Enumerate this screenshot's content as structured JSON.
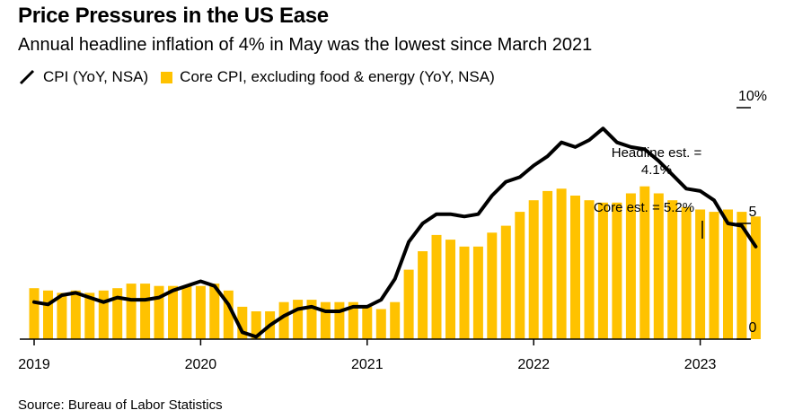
{
  "header": {
    "title": "Price Pressures in the US Ease",
    "subtitle": "Annual headline inflation of 4% in May was the lowest since March 2021"
  },
  "legend": {
    "cpi_label": "CPI (YoY, NSA)",
    "core_label": "Core CPI, excluding food & energy (YoY, NSA)"
  },
  "footer": {
    "source": "Source: Bureau of Labor Statistics"
  },
  "colors": {
    "cpi_line": "#000000",
    "core_bar": "#FFC200",
    "axis": "#000000"
  },
  "chart_data": {
    "type": "bar+line",
    "x_start": "2019-01",
    "months": [
      "2019-01",
      "2019-02",
      "2019-03",
      "2019-04",
      "2019-05",
      "2019-06",
      "2019-07",
      "2019-08",
      "2019-09",
      "2019-10",
      "2019-11",
      "2019-12",
      "2020-01",
      "2020-02",
      "2020-03",
      "2020-04",
      "2020-05",
      "2020-06",
      "2020-07",
      "2020-08",
      "2020-09",
      "2020-10",
      "2020-11",
      "2020-12",
      "2021-01",
      "2021-02",
      "2021-03",
      "2021-04",
      "2021-05",
      "2021-06",
      "2021-07",
      "2021-08",
      "2021-09",
      "2021-10",
      "2021-11",
      "2021-12",
      "2022-01",
      "2022-02",
      "2022-03",
      "2022-04",
      "2022-05",
      "2022-06",
      "2022-07",
      "2022-08",
      "2022-09",
      "2022-10",
      "2022-11",
      "2022-12",
      "2023-01",
      "2023-02",
      "2023-03",
      "2023-04",
      "2023-05"
    ],
    "series": [
      {
        "name": "CPI (YoY, NSA)",
        "kind": "line",
        "values": [
          1.6,
          1.5,
          1.9,
          2.0,
          1.8,
          1.6,
          1.8,
          1.7,
          1.7,
          1.8,
          2.1,
          2.3,
          2.5,
          2.3,
          1.5,
          0.3,
          0.1,
          0.6,
          1.0,
          1.3,
          1.4,
          1.2,
          1.2,
          1.4,
          1.4,
          1.7,
          2.6,
          4.2,
          5.0,
          5.4,
          5.4,
          5.3,
          5.4,
          6.2,
          6.8,
          7.0,
          7.5,
          7.9,
          8.5,
          8.3,
          8.6,
          9.1,
          8.5,
          8.3,
          8.2,
          7.7,
          7.1,
          6.5,
          6.4,
          6.0,
          5.0,
          4.9,
          4.0
        ]
      },
      {
        "name": "Core CPI, excluding food & energy (YoY, NSA)",
        "kind": "bar",
        "values": [
          2.2,
          2.1,
          2.0,
          2.1,
          2.0,
          2.1,
          2.2,
          2.4,
          2.4,
          2.3,
          2.3,
          2.3,
          2.3,
          2.4,
          2.1,
          1.4,
          1.2,
          1.2,
          1.6,
          1.7,
          1.7,
          1.6,
          1.6,
          1.6,
          1.4,
          1.3,
          1.6,
          3.0,
          3.8,
          4.5,
          4.3,
          4.0,
          4.0,
          4.6,
          4.9,
          5.5,
          6.0,
          6.4,
          6.5,
          6.2,
          6.0,
          5.9,
          5.9,
          6.3,
          6.6,
          6.3,
          6.0,
          5.7,
          5.6,
          5.5,
          5.6,
          5.5,
          5.3
        ]
      }
    ],
    "x_ticks": [
      "2019",
      "2020",
      "2021",
      "2022",
      "2023"
    ],
    "y_ticks": [
      "0",
      "5",
      "10%"
    ],
    "ylim": [
      0,
      10
    ],
    "annotations": {
      "headline": "Headline est. = 4.1%",
      "core": "Core est. = 5.2%"
    },
    "grid": false
  }
}
